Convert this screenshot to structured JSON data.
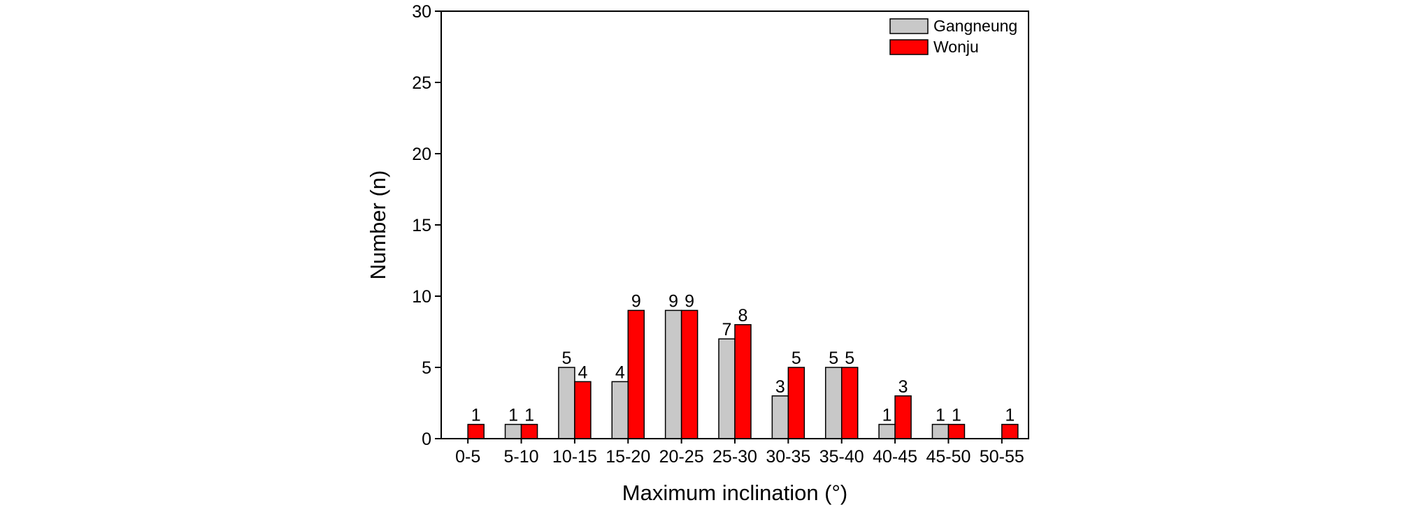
{
  "chart_data": {
    "type": "bar",
    "title": "",
    "xlabel": "Maximum inclination (°)",
    "ylabel": "Number (n)",
    "categories": [
      "0-5",
      "5-10",
      "10-15",
      "15-20",
      "20-25",
      "25-30",
      "30-35",
      "35-40",
      "40-45",
      "45-50",
      "50-55"
    ],
    "series": [
      {
        "name": "Gangneung",
        "values": [
          0,
          1,
          5,
          4,
          9,
          7,
          3,
          5,
          1,
          1,
          0
        ],
        "color": "#c8c8c8"
      },
      {
        "name": "Wonju",
        "values": [
          1,
          1,
          4,
          9,
          9,
          8,
          5,
          5,
          3,
          1,
          1
        ],
        "color": "#ff0000"
      }
    ],
    "ylim": [
      0,
      30
    ],
    "yticks": [
      0,
      5,
      10,
      15,
      20,
      25,
      30
    ],
    "grid": false,
    "legend_position": "top-right"
  }
}
